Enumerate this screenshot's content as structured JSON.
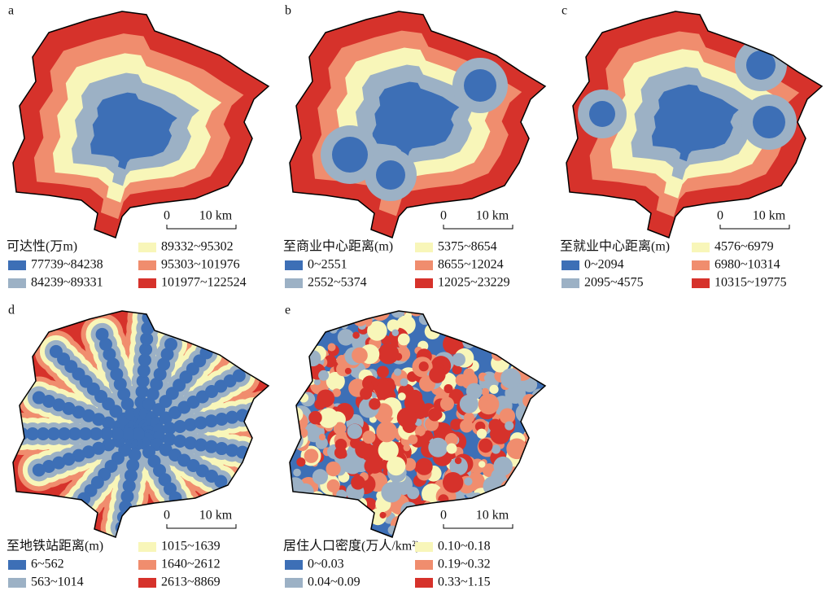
{
  "panels": [
    {
      "label": "a",
      "legend_title": "可达性(万m)",
      "legend": [
        {
          "label": "77739~84238",
          "color": "#3d6fb6"
        },
        {
          "label": "84239~89331",
          "color": "#9cb1c5"
        },
        {
          "label": "89332~95302",
          "color": "#f8f6b9"
        },
        {
          "label": "95303~101976",
          "color": "#f08d6e"
        },
        {
          "label": "101977~122524",
          "color": "#d6322b"
        }
      ],
      "scale": {
        "start": "0",
        "end": "10 km"
      }
    },
    {
      "label": "b",
      "legend_title": "至商业中心距离(m)",
      "legend": [
        {
          "label": "0~2551",
          "color": "#3d6fb6"
        },
        {
          "label": "2552~5374",
          "color": "#9cb1c5"
        },
        {
          "label": "5375~8654",
          "color": "#f8f6b9"
        },
        {
          "label": "8655~12024",
          "color": "#f08d6e"
        },
        {
          "label": "12025~23229",
          "color": "#d6322b"
        }
      ],
      "scale": {
        "start": "0",
        "end": "10 km"
      }
    },
    {
      "label": "c",
      "legend_title": "至就业中心距离(m)",
      "legend": [
        {
          "label": "0~2094",
          "color": "#3d6fb6"
        },
        {
          "label": "2095~4575",
          "color": "#9cb1c5"
        },
        {
          "label": "4576~6979",
          "color": "#f8f6b9"
        },
        {
          "label": "6980~10314",
          "color": "#f08d6e"
        },
        {
          "label": "10315~19775",
          "color": "#d6322b"
        }
      ],
      "scale": {
        "start": "0",
        "end": "10 km"
      }
    },
    {
      "label": "d",
      "legend_title": "至地铁站距离(m)",
      "legend": [
        {
          "label": "6~562",
          "color": "#3d6fb6"
        },
        {
          "label": "563~1014",
          "color": "#9cb1c5"
        },
        {
          "label": "1015~1639",
          "color": "#f8f6b9"
        },
        {
          "label": "1640~2612",
          "color": "#f08d6e"
        },
        {
          "label": "2613~8869",
          "color": "#d6322b"
        }
      ],
      "scale": {
        "start": "0",
        "end": "10 km"
      }
    },
    {
      "label": "e",
      "legend_title": "居住人口密度(万人/km²)",
      "legend": [
        {
          "label": "0~0.03",
          "color": "#3d6fb6"
        },
        {
          "label": "0.04~0.09",
          "color": "#9cb1c5"
        },
        {
          "label": "0.10~0.18",
          "color": "#f8f6b9"
        },
        {
          "label": "0.19~0.32",
          "color": "#f08d6e"
        },
        {
          "label": "0.33~1.15",
          "color": "#d6322b"
        }
      ],
      "scale": {
        "start": "0",
        "end": "10 km"
      }
    }
  ]
}
